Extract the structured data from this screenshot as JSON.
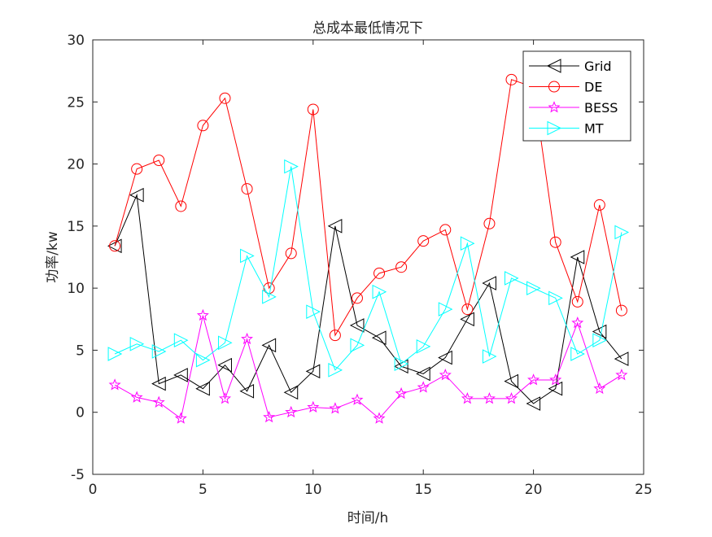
{
  "chart_data": {
    "type": "line",
    "title": "总成本最低情况下",
    "xlabel": "时间/h",
    "ylabel": "功率/kw",
    "xlim": [
      0,
      25
    ],
    "ylim": [
      -5,
      30
    ],
    "xticks": [
      0,
      5,
      10,
      15,
      20,
      25
    ],
    "yticks": [
      -5,
      0,
      5,
      10,
      15,
      20,
      25,
      30
    ],
    "grid": false,
    "legend_position": "top-right",
    "x": [
      1,
      2,
      3,
      4,
      5,
      6,
      7,
      8,
      9,
      10,
      11,
      12,
      13,
      14,
      15,
      16,
      17,
      18,
      19,
      20,
      21,
      22,
      23,
      24
    ],
    "series": [
      {
        "name": "Grid",
        "color": "#000000",
        "marker": "triangle-left",
        "values": [
          13.4,
          17.5,
          2.3,
          3.0,
          1.9,
          3.8,
          1.7,
          5.4,
          1.6,
          3.3,
          15.0,
          7.0,
          6.0,
          3.7,
          3.1,
          4.4,
          7.5,
          10.4,
          2.5,
          0.7,
          1.9,
          12.5,
          6.5,
          4.3
        ]
      },
      {
        "name": "DE",
        "color": "#ff0000",
        "marker": "circle",
        "values": [
          13.4,
          19.6,
          20.3,
          16.6,
          23.1,
          25.3,
          18.0,
          10.0,
          12.8,
          24.4,
          6.2,
          9.2,
          11.2,
          11.7,
          13.8,
          14.7,
          8.3,
          15.2,
          26.8,
          26.2,
          13.7,
          8.9,
          16.7,
          8.2
        ]
      },
      {
        "name": "BESS",
        "color": "#ff00ff",
        "marker": "star",
        "values": [
          2.2,
          1.2,
          0.8,
          -0.5,
          7.8,
          1.1,
          5.9,
          -0.4,
          0.0,
          0.4,
          0.3,
          1.0,
          -0.5,
          1.5,
          2.0,
          3.0,
          1.1,
          1.1,
          1.1,
          2.6,
          2.6,
          7.2,
          1.9,
          3.0
        ]
      },
      {
        "name": "MT",
        "color": "#00ffff",
        "marker": "triangle-right",
        "values": [
          4.7,
          5.5,
          4.9,
          5.8,
          4.2,
          5.6,
          12.6,
          9.3,
          19.8,
          8.1,
          3.4,
          5.4,
          9.7,
          3.9,
          5.3,
          8.3,
          13.6,
          4.5,
          10.8,
          10.0,
          9.2,
          4.7,
          5.8,
          14.5
        ]
      }
    ]
  }
}
